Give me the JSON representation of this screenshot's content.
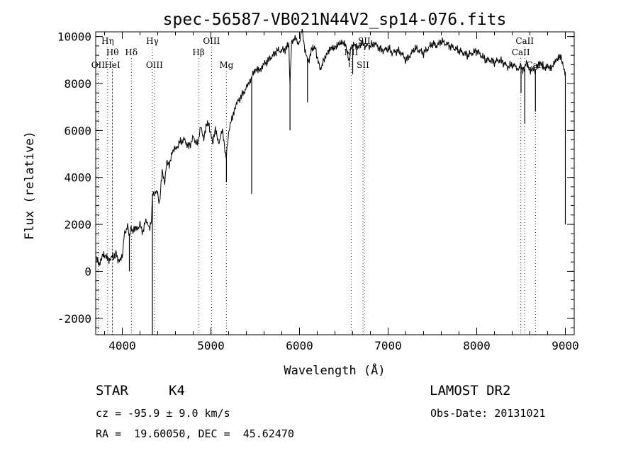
{
  "chart_data": {
    "type": "line",
    "title": "spec-56587-VB021N44V2_sp14-076.fits",
    "xlabel": "Wavelength (Å)",
    "ylabel": "Flux (relative)",
    "xlim": [
      3700,
      9100
    ],
    "ylim": [
      -2700,
      10200
    ],
    "x_ticks": [
      4000,
      5000,
      6000,
      7000,
      8000,
      9000
    ],
    "y_ticks": [
      -2000,
      0,
      2000,
      4000,
      6000,
      8000,
      10000
    ],
    "grid": false,
    "series": [
      {
        "x": [
          3710,
          3740,
          3780,
          3820,
          3850,
          3880,
          3900,
          3930,
          3950,
          3980,
          4000,
          4020,
          4040,
          4060,
          4080,
          4100,
          4120,
          4150,
          4180,
          4200,
          4230,
          4260,
          4290,
          4310,
          4330,
          4340,
          4350,
          4370,
          4400,
          4420,
          4450,
          4480,
          4500,
          4530,
          4560,
          4600,
          4650,
          4700,
          4750,
          4800,
          4850,
          4870,
          4890,
          4920,
          4950,
          4980,
          5000,
          5020,
          5050,
          5080,
          5100,
          5130,
          5170,
          5200,
          5230,
          5260,
          5300,
          5350,
          5400,
          5440,
          5460,
          5480,
          5520,
          5560,
          5600,
          5650,
          5700,
          5750,
          5800,
          5850,
          5880,
          5893,
          5910,
          5950,
          6000,
          6030,
          6060,
          6080,
          6110,
          6120,
          6140,
          6180,
          6230,
          6280,
          6320,
          6360,
          6400,
          6440,
          6480,
          6520,
          6560,
          6563,
          6580,
          6620,
          6660,
          6700,
          6750,
          6800,
          6850,
          6900,
          6950,
          7000,
          7050,
          7100,
          7150,
          7200,
          7250,
          7300,
          7350,
          7400,
          7450,
          7500,
          7550,
          7600,
          7650,
          7700,
          7750,
          7800,
          7850,
          7900,
          7950,
          8000,
          8050,
          8100,
          8150,
          8200,
          8250,
          8300,
          8350,
          8400,
          8450,
          8480,
          8500,
          8520,
          8542,
          8560,
          8600,
          8640,
          8662,
          8680,
          8720,
          8760,
          8800,
          8840,
          8880,
          8920,
          8950,
          8970,
          8990,
          9000
        ],
        "y": [
          500,
          300,
          800,
          600,
          400,
          700,
          500,
          900,
          400,
          600,
          500,
          1600,
          1700,
          1900,
          1600,
          1800,
          1700,
          1800,
          1900,
          2000,
          1700,
          2100,
          2000,
          1800,
          2300,
          3300,
          3200,
          3400,
          3300,
          2900,
          4200,
          3800,
          4600,
          4600,
          5000,
          5200,
          5500,
          5600,
          5300,
          5700,
          5400,
          5900,
          6100,
          5700,
          6200,
          6300,
          5800,
          5500,
          6000,
          5600,
          5500,
          6100,
          4900,
          5800,
          6500,
          6800,
          7200,
          7500,
          7800,
          8000,
          8300,
          8500,
          8700,
          8600,
          8800,
          9000,
          9200,
          9400,
          9400,
          9500,
          9600,
          8000,
          9800,
          9900,
          9700,
          10300,
          9500,
          9100,
          9000,
          9300,
          9400,
          9500,
          8600,
          9000,
          9400,
          9600,
          9500,
          9600,
          9700,
          9700,
          9000,
          8900,
          9500,
          9700,
          9600,
          9700,
          9600,
          9600,
          9700,
          9500,
          9400,
          9500,
          9300,
          9400,
          9300,
          9000,
          9200,
          9500,
          9400,
          9300,
          9500,
          9700,
          9600,
          9800,
          9700,
          9600,
          9500,
          9400,
          9300,
          9200,
          9300,
          9400,
          9200,
          9000,
          9000,
          8900,
          9000,
          8900,
          8700,
          8800,
          8700,
          8600,
          8800,
          8500,
          8600,
          8900,
          8600,
          8700,
          8600,
          8700,
          8800,
          8600,
          8800,
          8700,
          8900,
          9000,
          9200,
          8800,
          8600,
          8500
        ]
      }
    ],
    "absorption_dips": [
      {
        "x": 4080,
        "y": 0
      },
      {
        "x": 4340,
        "y": -2700
      },
      {
        "x": 5175,
        "y": 3800
      },
      {
        "x": 5460,
        "y": 3300
      },
      {
        "x": 5893,
        "y": 6000
      },
      {
        "x": 6090,
        "y": 7200
      },
      {
        "x": 6563,
        "y": 8700
      },
      {
        "x": 6600,
        "y": 8400
      },
      {
        "x": 8500,
        "y": 7600
      },
      {
        "x": 8542,
        "y": 6300
      },
      {
        "x": 8662,
        "y": 6800
      },
      {
        "x": 9000,
        "y": 2000
      }
    ],
    "line_markers": [
      {
        "x": 3727,
        "name": "OII",
        "row": 3
      },
      {
        "x": 3835,
        "name": "Hη",
        "row": 1
      },
      {
        "x": 3889,
        "name": "HeI",
        "row": 3
      },
      {
        "x": 3889,
        "name": "Hθ",
        "row": 2
      },
      {
        "x": 4102,
        "name": "Hδ",
        "row": 2
      },
      {
        "x": 4340,
        "name": "Hγ",
        "row": 1
      },
      {
        "x": 4363,
        "name": "OIII",
        "row": 3
      },
      {
        "x": 4861,
        "name": "Hβ",
        "row": 2
      },
      {
        "x": 5007,
        "name": "OIII",
        "row": 1
      },
      {
        "x": 5175,
        "name": "Mg",
        "row": 3
      },
      {
        "x": 6583,
        "name": "NII",
        "row": 2
      },
      {
        "x": 6716,
        "name": "SII",
        "row": 3
      },
      {
        "x": 6731,
        "name": "SII",
        "row": 1
      },
      {
        "x": 8498,
        "name": "CaII",
        "row": 2
      },
      {
        "x": 8542,
        "name": "CaII",
        "row": 1
      },
      {
        "x": 8662,
        "name": "CaII",
        "row": 3
      }
    ]
  },
  "info": {
    "object_class": "STAR",
    "subclass": "K4",
    "survey": "LAMOST DR2",
    "redshift": "cz = -95.9 ± 9.0 km/s",
    "obs_date": "Obs-Date: 20131021",
    "coords": "RA =  19.60050, DEC =  45.62470"
  }
}
